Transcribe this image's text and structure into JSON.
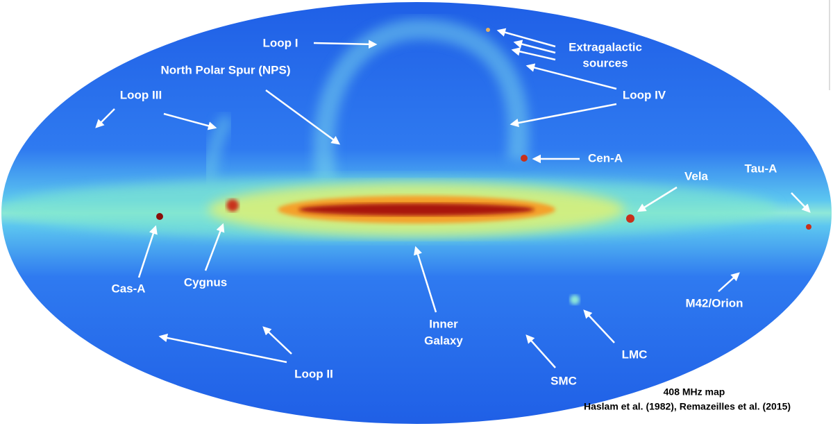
{
  "labels": {
    "loop_i": "Loop I",
    "nps": "North Polar Spur (NPS)",
    "loop_iii": "Loop III",
    "extragalactic": [
      "Extragalactic",
      "sources"
    ],
    "loop_iv": "Loop IV",
    "cen_a": "Cen-A",
    "vela": "Vela",
    "tau_a": "Tau-A",
    "cas_a": "Cas-A",
    "cygnus": "Cygnus",
    "inner_galaxy": [
      "Inner",
      "Galaxy"
    ],
    "m42": "M42/Orion",
    "lmc": "LMC",
    "smc": "SMC",
    "loop_ii": "Loop II"
  },
  "caption": {
    "title": "408 MHz map",
    "credit": "Haslam et al. (1982), Remazeilles et al. (2015)"
  }
}
